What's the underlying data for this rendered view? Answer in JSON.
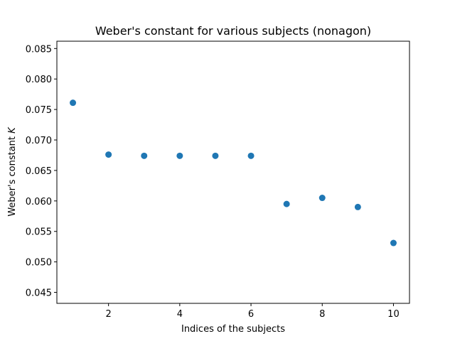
{
  "chart_data": {
    "type": "scatter",
    "title": "Weber's constant for various subjects (nonagon)",
    "xlabel": "Indices of the subjects",
    "ylabel": "Weber's constant K",
    "xlim": [
      0.55,
      10.45
    ],
    "ylim": [
      0.0432,
      0.0862
    ],
    "xticks": [
      2,
      4,
      6,
      8,
      10
    ],
    "yticks": [
      0.045,
      0.05,
      0.055,
      0.06,
      0.065,
      0.07,
      0.075,
      0.08,
      0.085
    ],
    "grid": false,
    "marker_color": "#1f77b4",
    "series": [
      {
        "x": [
          1,
          2,
          3,
          4,
          5,
          6,
          7,
          8,
          9,
          10
        ],
        "y": [
          0.0761,
          0.0676,
          0.0674,
          0.0674,
          0.0674,
          0.0674,
          0.0595,
          0.0605,
          0.059,
          0.0531
        ]
      }
    ]
  }
}
